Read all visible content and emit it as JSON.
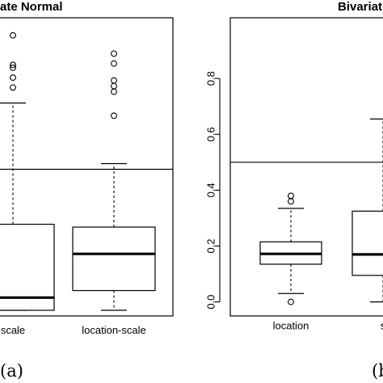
{
  "chart_data": [
    {
      "type": "box",
      "title": "ate Normal",
      "categories": [
        "scale",
        "location-scale"
      ],
      "ylim": [
        0,
        1.02
      ],
      "reference_line": 0.5,
      "boxes": [
        {
          "label": "scale",
          "q1": 0.0,
          "median": 0.045,
          "q3": 0.305,
          "whisker_low": 0.0,
          "whisker_high": 0.735,
          "outliers": [
            0.975,
            0.87,
            0.86,
            0.825,
            0.79
          ]
        },
        {
          "label": "location-scale",
          "q1": 0.07,
          "median": 0.2,
          "q3": 0.295,
          "whisker_low": 0.0,
          "whisker_high": 0.52,
          "outliers": [
            0.91,
            0.875,
            0.815,
            0.795,
            0.775,
            0.69
          ]
        }
      ],
      "panel_label": "(a)"
    },
    {
      "type": "box",
      "title": "Bivariat",
      "categories": [
        "location",
        "s"
      ],
      "yticks": [
        "0.0",
        "0.2",
        "0.4",
        "0.6",
        "0.8"
      ],
      "ylim": [
        -0.03,
        1.0
      ],
      "reference_line": 0.5,
      "boxes": [
        {
          "label": "location",
          "q1": 0.135,
          "median": 0.172,
          "q3": 0.215,
          "whisker_low": 0.03,
          "whisker_high": 0.335,
          "outliers": [
            0.38,
            0.36,
            0.0
          ]
        },
        {
          "label": "s",
          "q1": 0.095,
          "median": 0.17,
          "q3": 0.325,
          "whisker_low": 0.0,
          "whisker_high": 0.655,
          "outliers": []
        }
      ],
      "panel_label": "(b"
    }
  ]
}
